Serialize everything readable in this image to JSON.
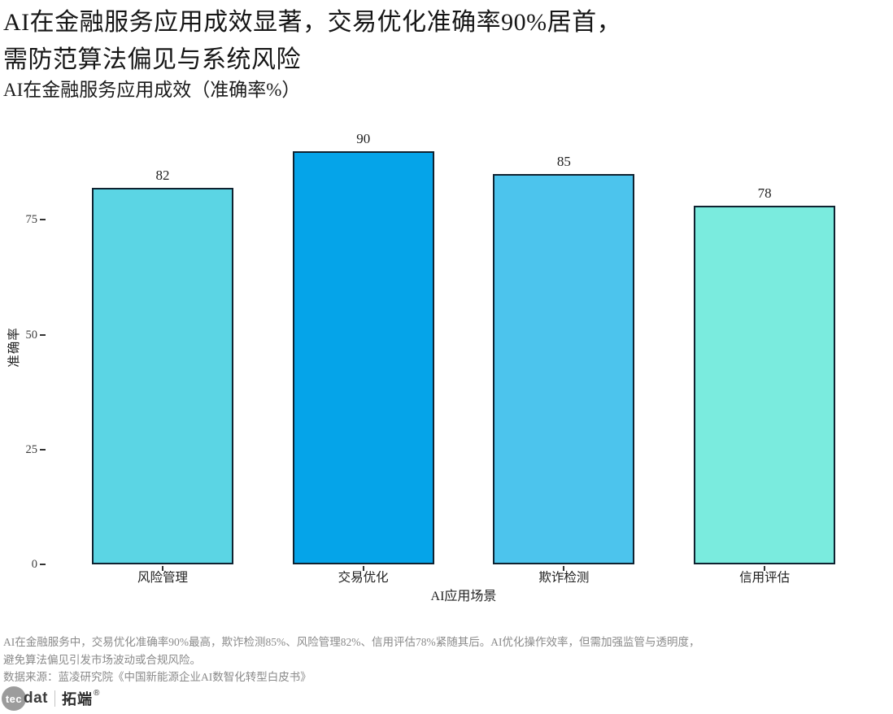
{
  "header": {
    "title_line1": "AI在金融服务应用成效显著，交易优化准确率90%居首，",
    "title_line2": "需防范算法偏见与系统风险",
    "subtitle": "AI在金融服务应用成效（准确率%）"
  },
  "chart_data": {
    "type": "bar",
    "title": "AI在金融服务应用成效（准确率%）",
    "categories": [
      "风险管理",
      "交易优化",
      "欺诈检测",
      "信用评估"
    ],
    "values": [
      82,
      90,
      85,
      78
    ],
    "value_labels": [
      "82",
      "90",
      "85",
      "78"
    ],
    "bar_colors": [
      "#5BD5E4",
      "#05A4E9",
      "#4CC4ED",
      "#7AEBDE"
    ],
    "bar_border_color": "#0F2230",
    "xlabel": "AI应用场景",
    "ylabel": "准确率",
    "yticks": [
      0,
      25,
      50,
      75
    ],
    "ylim": [
      0,
      95
    ],
    "grid": false,
    "legend": false,
    "background": "#FFFFFF"
  },
  "footer": {
    "note_line1": "AI在金融服务中，交易优化准确率90%最高，欺诈检测85%、风险管理82%、信用评估78%紧随其后。AI优化操作效率，但需加强监管与透明度，",
    "note_line2": "避免算法偏见引发市场波动或合规风险。",
    "source_line": "数据来源：蓝凌研究院《中国新能源企业AI数智化转型白皮书》"
  },
  "logo": {
    "circle_text": "tec",
    "dat_text": "dat",
    "cn_text": "拓端",
    "registered_mark": "®",
    "circle_color": "#9C9C9C"
  }
}
